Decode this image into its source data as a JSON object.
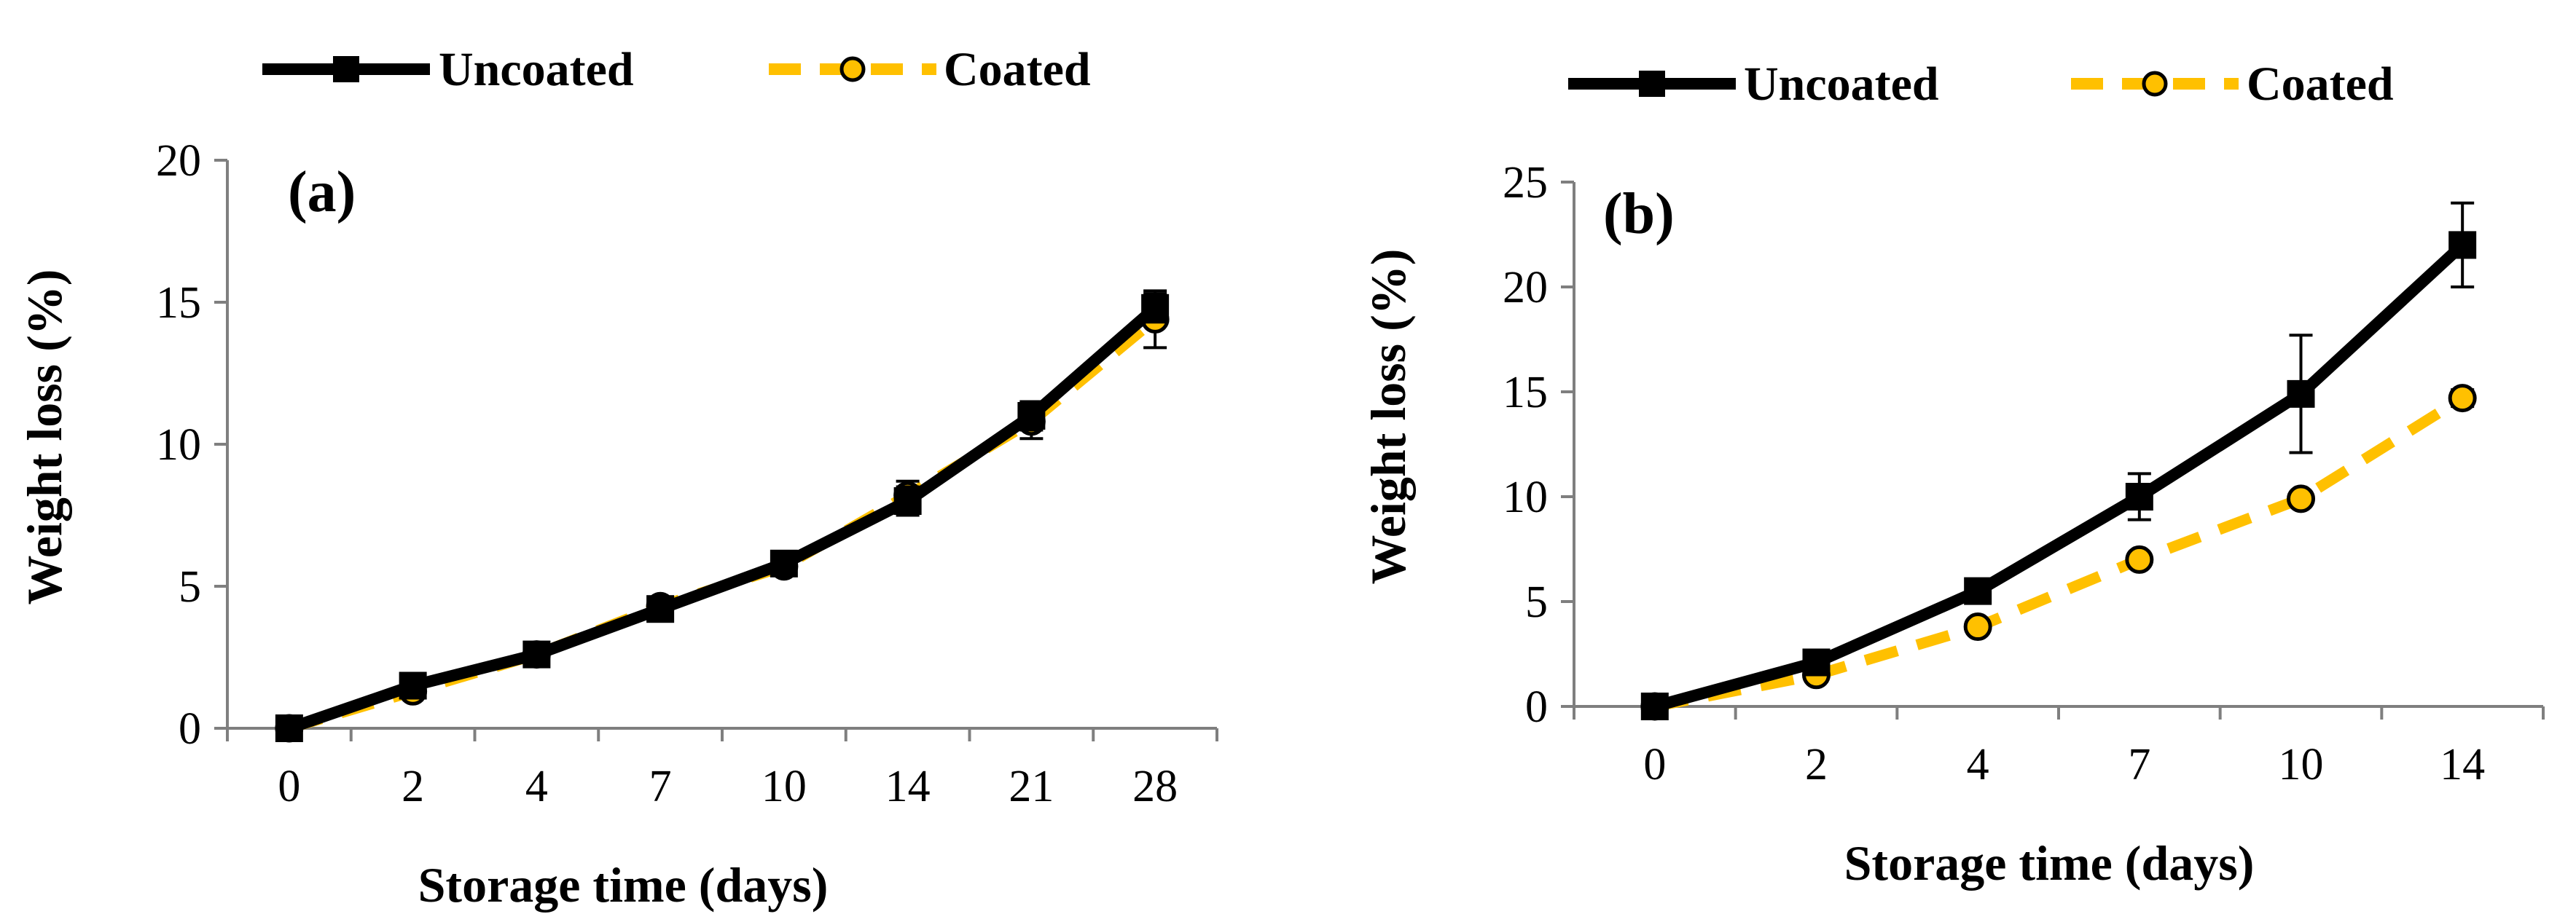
{
  "chart_data": [
    {
      "type": "line",
      "panel_label": "(a)",
      "xlabel": "Storage time (days)",
      "ylabel": "Weight loss (%)",
      "categories": [
        "0",
        "2",
        "4",
        "7",
        "10",
        "14",
        "21",
        "28"
      ],
      "ylim": [
        0,
        20
      ],
      "yticks": [
        0,
        5,
        10,
        15,
        20
      ],
      "legend_position": "top",
      "series": [
        {
          "name": "Uncoated",
          "values": [
            0,
            1.5,
            2.6,
            4.2,
            5.8,
            8.0,
            11.0,
            14.8
          ],
          "errors": [
            0.1,
            0.2,
            0.2,
            0.3,
            0.3,
            0.5,
            0.5,
            0.5
          ],
          "color": "#000000",
          "marker": "square",
          "line": "solid"
        },
        {
          "name": "Coated",
          "values": [
            0,
            1.3,
            2.6,
            4.3,
            5.7,
            8.2,
            10.8,
            14.4
          ],
          "errors": [
            0.1,
            0.2,
            0.2,
            0.3,
            0.3,
            0.5,
            0.6,
            1.0
          ],
          "color": "#FFC000",
          "marker": "circle",
          "line": "dashed"
        }
      ]
    },
    {
      "type": "line",
      "panel_label": "(b)",
      "xlabel": "Storage time (days)",
      "ylabel": "Weight loss (%)",
      "categories": [
        "0",
        "2",
        "4",
        "7",
        "10",
        "14"
      ],
      "ylim": [
        0,
        25
      ],
      "yticks": [
        0,
        5,
        10,
        15,
        20,
        25
      ],
      "legend_position": "top",
      "series": [
        {
          "name": "Uncoated",
          "values": [
            0,
            2.1,
            5.5,
            10.0,
            14.9,
            22.0
          ],
          "errors": [
            0.1,
            0.3,
            0.4,
            1.1,
            2.8,
            2.0
          ],
          "color": "#000000",
          "marker": "square",
          "line": "solid"
        },
        {
          "name": "Coated",
          "values": [
            0,
            1.5,
            3.8,
            7.0,
            9.9,
            14.7
          ],
          "errors": [
            0.1,
            0.2,
            0.3,
            0.3,
            0.3,
            0.4
          ],
          "color": "#FFC000",
          "marker": "circle",
          "line": "dashed"
        }
      ]
    }
  ]
}
